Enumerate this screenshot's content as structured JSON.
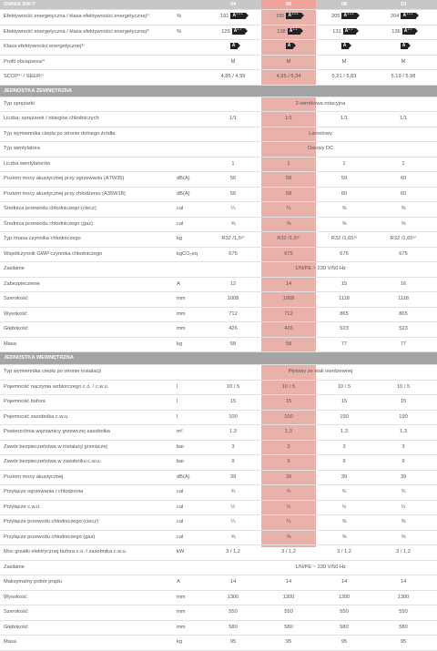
{
  "header": {
    "model_label": "OMNIA SW-T",
    "models": [
      "04",
      "06",
      "08",
      "10"
    ]
  },
  "energy_rows": [
    {
      "label": "Efektywność energetyczna / klasa efektywności energetycznej¹⁾",
      "unit": "%",
      "values": [
        "191",
        "195",
        "205",
        "204"
      ],
      "badge": "A⁺⁺⁺"
    },
    {
      "label": "Efektywność energetyczna / klasa efektywności energetycznej²⁾",
      "unit": "%",
      "values": [
        "129",
        "138",
        "131",
        "136"
      ],
      "badge": "A⁺⁺"
    },
    {
      "label": "Klasa efektywności energetycznej³⁾",
      "unit": "",
      "values": [
        "",
        "",
        "",
        ""
      ],
      "badge": "A"
    },
    {
      "label": "Profil obciążenia³⁾",
      "unit": "",
      "values": [
        "M",
        "M",
        "M",
        "M"
      ],
      "badge": ""
    },
    {
      "label": "SCOP⁴⁾ / SEER⁵⁾",
      "unit": "",
      "values": [
        "4,85 / 4,99",
        "4,95 / 5,34",
        "5,21 / 5,83",
        "5,19 / 5,98"
      ],
      "badge": ""
    }
  ],
  "outdoor_section": {
    "title": "JEDNOSTKA ZEWNĘTRZNA",
    "rows": [
      {
        "label": "Typ sprężarki",
        "unit": "",
        "span": "2-wirnikowa rotacyjna"
      },
      {
        "label": "Liczba: sprężarek / obiegów chłodniczych",
        "unit": "",
        "values": [
          "1/1",
          "1/1",
          "1/1",
          "1/1"
        ]
      },
      {
        "label": "Typ wymiennika ciepła po stronie dolnego źródła",
        "unit": "",
        "span": "Lamelowy"
      },
      {
        "label": "Typ wentylatora",
        "unit": "",
        "span": "Osiowy DC"
      },
      {
        "label": "Liczba wentylatorów",
        "unit": "",
        "values": [
          "1",
          "1",
          "1",
          "1"
        ]
      },
      {
        "label": "Poziom mocy akustycznej przy ogrzewaniu (A7W35)",
        "unit": "dB(A)",
        "values": [
          "56",
          "58",
          "59",
          "60"
        ]
      },
      {
        "label": "Poziom mocy akustycznej przy chłodzeniu (A35W18)",
        "unit": "dB(A)",
        "values": [
          "56",
          "58",
          "60",
          "60"
        ]
      },
      {
        "label": "Średnica przewodu chłodniczego (ciecz)",
        "unit": "cal",
        "values": [
          "¼",
          "¼",
          "⅜",
          "⅜"
        ]
      },
      {
        "label": "Średnica przewodu chłodniczego (gaz)",
        "unit": "cal",
        "values": [
          "⅝",
          "⅝",
          "⅝",
          "⅝"
        ]
      },
      {
        "label": "Typ /masa czynnika chłodniczego",
        "unit": "kg",
        "values": [
          "R32 /1,5⁶⁾",
          "R32 /1,5⁶⁾",
          "R32 /1,65⁶⁾",
          "R32 /1,65⁶⁾"
        ]
      },
      {
        "label": "Współczynnik GWP czynnika chłodniczego",
        "unit": "kgCO₂eq",
        "values": [
          "675",
          "675",
          "675",
          "675"
        ]
      },
      {
        "label": "Zasilanie",
        "unit": "",
        "span": "1/N/PE ~ 230 V/50 Hz"
      },
      {
        "label": "Zabezpieczenie",
        "unit": "A",
        "values": [
          "12",
          "14",
          "15",
          "16"
        ]
      },
      {
        "label": "Szerokość",
        "unit": "mm",
        "values": [
          "1008",
          "1008",
          "1118",
          "1118"
        ]
      },
      {
        "label": "Wysokość",
        "unit": "mm",
        "values": [
          "712",
          "712",
          "865",
          "865"
        ]
      },
      {
        "label": "Głębokość",
        "unit": "mm",
        "values": [
          "426",
          "426",
          "523",
          "523"
        ]
      },
      {
        "label": "Masa",
        "unit": "kg",
        "values": [
          "58",
          "58",
          "77",
          "77"
        ]
      }
    ]
  },
  "indoor_section": {
    "title": "JEDNOSTKA WEWNĘTRZNA",
    "rows": [
      {
        "label": "Typ wymiennika ciepła po stronie instalacji",
        "unit": "",
        "span": "Płytowy ze stali nierdzewnej"
      },
      {
        "label": "Pojemność naczynia wzbiorczego c.o. / c.w.u.",
        "unit": "l",
        "values": [
          "10 / 5",
          "10 / 5",
          "10 / 5",
          "10 / 5"
        ]
      },
      {
        "label": "Pojemność bufora",
        "unit": "l",
        "values": [
          "15",
          "15",
          "15",
          "15"
        ]
      },
      {
        "label": "Pojemność zasobnika c.w.u.",
        "unit": "l",
        "values": [
          "100",
          "100",
          "190",
          "190"
        ]
      },
      {
        "label": "Powierzchnia wężownicy grzewczej zasobnika",
        "unit": "m²",
        "values": [
          "1,3",
          "1,3",
          "1,3",
          "1,3"
        ]
      },
      {
        "label": "Zawór bezpieczeństwa w instalacji grzewczej",
        "unit": "bar",
        "values": [
          "3",
          "3",
          "3",
          "3"
        ]
      },
      {
        "label": "Zawór bezpieczeństwa w zasobniku c.w.u.",
        "unit": "bar",
        "values": [
          "9",
          "9",
          "9",
          "9"
        ]
      },
      {
        "label": "Poziom mocy akustycznej",
        "unit": "dB(A)",
        "values": [
          "39",
          "39",
          "39",
          "39"
        ]
      },
      {
        "label": "Przyłącze ogrzewania / chłodzenia",
        "unit": "cal",
        "values": [
          "¾",
          "¾",
          "¾",
          "¾"
        ]
      },
      {
        "label": "Przyłącze c.w.u.",
        "unit": "cal",
        "values": [
          "½",
          "½",
          "½",
          "½"
        ]
      },
      {
        "label": "Przyłącze przewodu chłodniczego (ciecz)",
        "unit": "cal",
        "values": [
          "¼",
          "¼",
          "⅜",
          "⅜"
        ]
      },
      {
        "label": "Przyłącze przewodu chłodniczego (gaz)",
        "unit": "cal",
        "values": [
          "⅝",
          "⅝",
          "⅝",
          "⅝"
        ]
      },
      {
        "label": "Moc grzałki elektrycznej bufora c.o. / zasobnika c.w.u.",
        "unit": "kW",
        "values": [
          "3 / 1,2",
          "3 / 1,2",
          "3 / 1,2",
          "3 / 1,2"
        ]
      },
      {
        "label": "Zasilanie",
        "unit": "",
        "span": "1/N/PE ~ 230 V/50 Hz"
      },
      {
        "label": "Maksymalny pobór prądu",
        "unit": "A",
        "values": [
          "14",
          "14",
          "14",
          "14"
        ]
      },
      {
        "label": "Wysokość",
        "unit": "mm",
        "values": [
          "1300",
          "1300",
          "1300",
          "1300"
        ]
      },
      {
        "label": "Szerokość",
        "unit": "mm",
        "values": [
          "550",
          "550",
          "550",
          "550"
        ]
      },
      {
        "label": "Głębokość",
        "unit": "mm",
        "values": [
          "580",
          "580",
          "580",
          "580"
        ]
      },
      {
        "label": "Masa",
        "unit": "kg",
        "values": [
          "95",
          "95",
          "95",
          "95"
        ]
      }
    ]
  },
  "colors": {
    "highlight": "#eab1ab",
    "header_bg": "#c7c7c7",
    "section_bg": "#a4a4a4",
    "badge": "#222222"
  }
}
